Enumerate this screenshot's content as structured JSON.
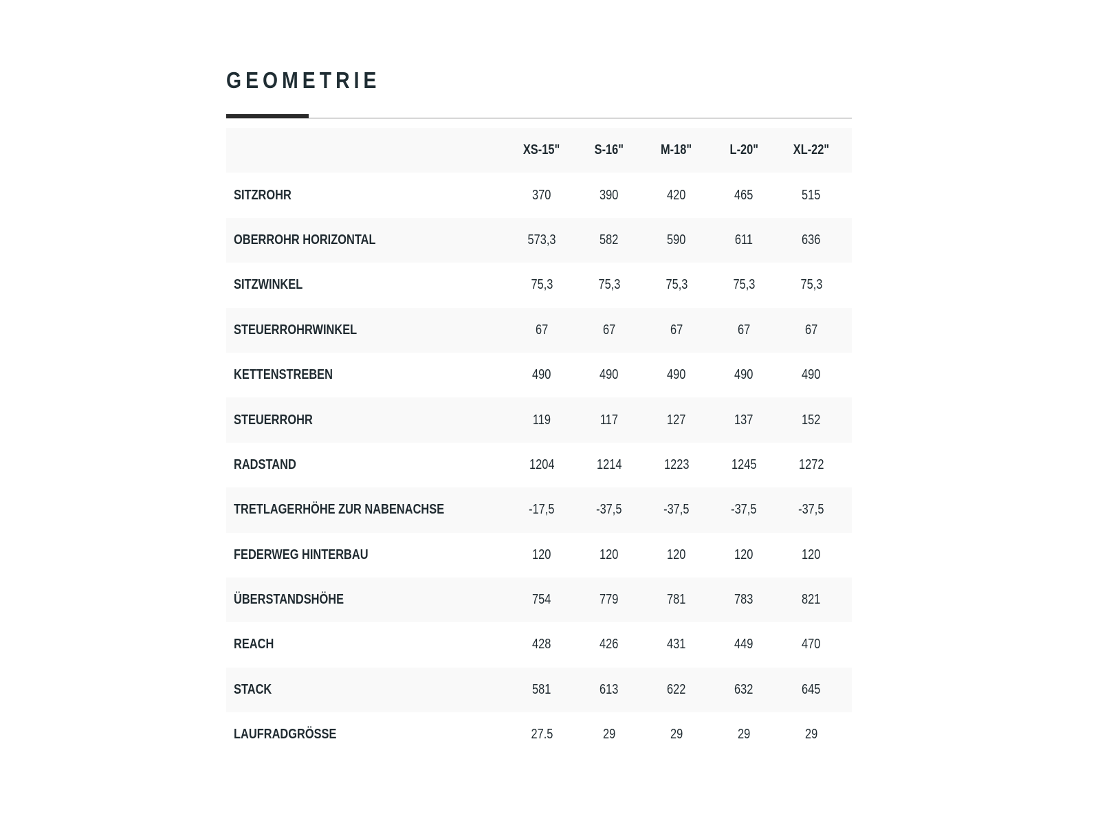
{
  "title": "GEOMETRIE",
  "table": {
    "columns": [
      "XS-15\"",
      "S-16\"",
      "M-18\"",
      "L-20\"",
      "XL-22\""
    ],
    "rows": [
      {
        "label": "SITZROHR",
        "values": [
          "370",
          "390",
          "420",
          "465",
          "515"
        ]
      },
      {
        "label": "OBERROHR HORIZONTAL",
        "values": [
          "573,3",
          "582",
          "590",
          "611",
          "636"
        ]
      },
      {
        "label": "SITZWINKEL",
        "values": [
          "75,3",
          "75,3",
          "75,3",
          "75,3",
          "75,3"
        ]
      },
      {
        "label": "STEUERROHRWINKEL",
        "values": [
          "67",
          "67",
          "67",
          "67",
          "67"
        ]
      },
      {
        "label": "KETTENSTREBEN",
        "values": [
          "490",
          "490",
          "490",
          "490",
          "490"
        ]
      },
      {
        "label": "STEUERROHR",
        "values": [
          "119",
          "117",
          "127",
          "137",
          "152"
        ]
      },
      {
        "label": "RADSTAND",
        "values": [
          "1204",
          "1214",
          "1223",
          "1245",
          "1272"
        ]
      },
      {
        "label": "TRETLAGERHÖHE ZUR NABENACHSE",
        "values": [
          "-17,5",
          "-37,5",
          "-37,5",
          "-37,5",
          "-37,5"
        ]
      },
      {
        "label": "FEDERWEG HINTERBAU",
        "values": [
          "120",
          "120",
          "120",
          "120",
          "120"
        ]
      },
      {
        "label": "ÜBERSTANDSHÖHE",
        "values": [
          "754",
          "779",
          "781",
          "783",
          "821"
        ]
      },
      {
        "label": "REACH",
        "values": [
          "428",
          "426",
          "431",
          "449",
          "470"
        ]
      },
      {
        "label": "STACK",
        "values": [
          "581",
          "613",
          "622",
          "632",
          "645"
        ]
      },
      {
        "label": "LAUFRADGRÖSSE",
        "values": [
          "27.5",
          "29",
          "29",
          "29",
          "29"
        ]
      }
    ]
  },
  "colors": {
    "text": "#1f2a30",
    "accent": "#2b2b2b",
    "row_shade": "#f9f9f9",
    "rule": "#d6d6d6"
  }
}
